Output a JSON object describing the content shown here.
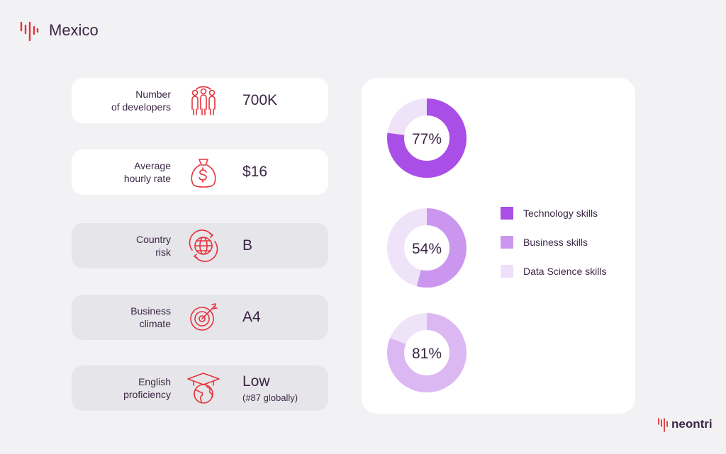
{
  "header": {
    "title": "Mexico"
  },
  "stats": [
    {
      "label_lines": [
        "Number",
        "of developers"
      ],
      "icon": "developers-icon",
      "value": "700K",
      "sub": ""
    },
    {
      "label_lines": [
        "Average",
        "hourly rate"
      ],
      "icon": "money-bag-icon",
      "value": "$16",
      "sub": ""
    },
    {
      "label_lines": [
        "Country",
        "risk"
      ],
      "icon": "globe-risk-icon",
      "value": "B",
      "sub": ""
    },
    {
      "label_lines": [
        "Business",
        "climate"
      ],
      "icon": "target-icon",
      "value": "A4",
      "sub": ""
    },
    {
      "label_lines": [
        "English",
        "proficiency"
      ],
      "icon": "graduation-globe-icon",
      "value": "Low",
      "sub": "(#87 globally)"
    }
  ],
  "chart_data": {
    "type": "pie",
    "variant": "donut",
    "series": [
      {
        "name": "Technology skills",
        "value": 77,
        "label": "77%",
        "color": "#a94ee6",
        "track": "#efe3f9"
      },
      {
        "name": "Business skills",
        "value": 54,
        "label": "54%",
        "color": "#cb97ee",
        "track": "#efe3f9"
      },
      {
        "name": "Data Science skills",
        "value": 81,
        "label": "81%",
        "color": "#dcb8f3",
        "track": "#efe3f9"
      }
    ],
    "legend": {
      "position": "right",
      "items": [
        {
          "label": "Technology skills",
          "color": "#a94ee6"
        },
        {
          "label": "Business skills",
          "color": "#cb97ee"
        },
        {
          "label": "Data Science skills",
          "color": "#ede0f8"
        }
      ]
    }
  },
  "brand": {
    "name": "neontri"
  },
  "colors": {
    "accent": "#e5323c",
    "text": "#3b2646",
    "background": "#f2f1f4"
  }
}
